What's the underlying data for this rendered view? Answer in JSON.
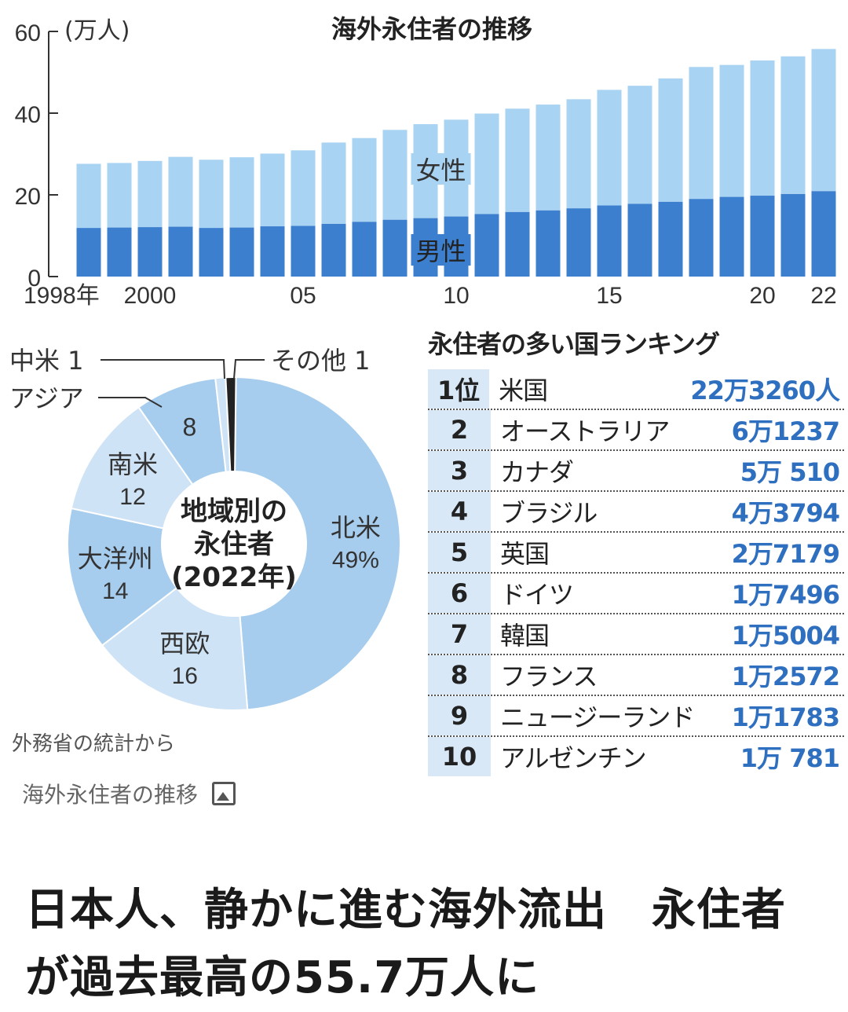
{
  "chart_data": [
    {
      "type": "bar",
      "stacked": true,
      "title": "海外永住者の推移",
      "unit": "(万人)",
      "x": [
        1998,
        1999,
        2000,
        2001,
        2002,
        2003,
        2004,
        2005,
        2006,
        2007,
        2008,
        2009,
        2010,
        2011,
        2012,
        2013,
        2014,
        2015,
        2016,
        2017,
        2018,
        2019,
        2020,
        2021,
        2022
      ],
      "x_tick_labels": [
        {
          "x": 1998,
          "label": "1998年"
        },
        {
          "x": 2000,
          "label": "2000"
        },
        {
          "x": 2005,
          "label": "05"
        },
        {
          "x": 2010,
          "label": "10"
        },
        {
          "x": 2015,
          "label": "15"
        },
        {
          "x": 2020,
          "label": "20"
        },
        {
          "x": 2022,
          "label": "22"
        }
      ],
      "y_ticks": [
        0,
        20,
        40,
        60
      ],
      "ylim": [
        0,
        60
      ],
      "series": [
        {
          "name": "男性",
          "color": "#3d7fcf",
          "values": [
            11.9,
            12.0,
            12.1,
            12.2,
            11.9,
            12.0,
            12.3,
            12.4,
            12.9,
            13.4,
            13.9,
            14.3,
            14.7,
            15.3,
            15.8,
            16.2,
            16.7,
            17.4,
            17.8,
            18.3,
            19.0,
            19.5,
            19.8,
            20.2,
            20.9
          ]
        },
        {
          "name": "女性",
          "color": "#a9d3f2",
          "values": [
            15.7,
            15.8,
            16.2,
            17.1,
            16.7,
            17.2,
            17.8,
            18.5,
            19.9,
            20.5,
            22.0,
            23.0,
            23.7,
            24.6,
            25.3,
            25.9,
            26.7,
            28.3,
            28.9,
            30.2,
            32.3,
            32.3,
            33.1,
            33.7,
            34.8
          ]
        }
      ],
      "inline_labels": {
        "female": "女性",
        "male": "男性"
      }
    },
    {
      "type": "pie",
      "donut": true,
      "title_lines": [
        "地域別の",
        "永住者",
        "(2022年)"
      ],
      "slices": [
        {
          "name": "北米",
          "value": 49,
          "label": "北米",
          "value_label": "49%",
          "color": "#a6cdee"
        },
        {
          "name": "西欧",
          "value": 16,
          "label": "西欧",
          "value_label": "16",
          "color": "#cfe3f6"
        },
        {
          "name": "大洋州",
          "value": 14,
          "label": "大洋州",
          "value_label": "14",
          "color": "#a6cdee"
        },
        {
          "name": "南米",
          "value": 12,
          "label": "南米",
          "value_label": "12",
          "color": "#cfe3f6"
        },
        {
          "name": "アジア",
          "value": 8,
          "label": "",
          "value_label": "8",
          "color": "#a6cdee"
        },
        {
          "name": "中米",
          "value": 1,
          "label": "",
          "value_label": "",
          "color": "#cfe3f6"
        },
        {
          "name": "その他",
          "value": 1,
          "label": "",
          "value_label": "",
          "color": "#222222"
        }
      ],
      "callouts": {
        "central_america": "中米 1",
        "asia": "アジア",
        "others": "その他 1"
      }
    }
  ],
  "ranking": {
    "title": "永住者の多い国ランキング",
    "rows": [
      {
        "rank": "1位",
        "country": "米国",
        "count": "22万3260人"
      },
      {
        "rank": "2",
        "country": "オーストラリア",
        "count": "6万1237"
      },
      {
        "rank": "3",
        "country": "カナダ",
        "count": "5万 510"
      },
      {
        "rank": "4",
        "country": "ブラジル",
        "count": "4万3794"
      },
      {
        "rank": "5",
        "country": "英国",
        "count": "2万7179"
      },
      {
        "rank": "6",
        "country": "ドイツ",
        "count": "1万7496"
      },
      {
        "rank": "7",
        "country": "韓国",
        "count": "1万5004"
      },
      {
        "rank": "8",
        "country": "フランス",
        "count": "1万2572"
      },
      {
        "rank": "9",
        "country": "ニュージーランド",
        "count": "1万1783"
      },
      {
        "rank": "10",
        "country": "アルゼンチン",
        "count": "1万 781"
      }
    ]
  },
  "source": "外務省の統計から",
  "caption": {
    "text": "海外永住者の推移",
    "icon": "image-icon"
  },
  "headline": "日本人、静かに進む海外流出　永住者が過去最高の55.7万人に"
}
